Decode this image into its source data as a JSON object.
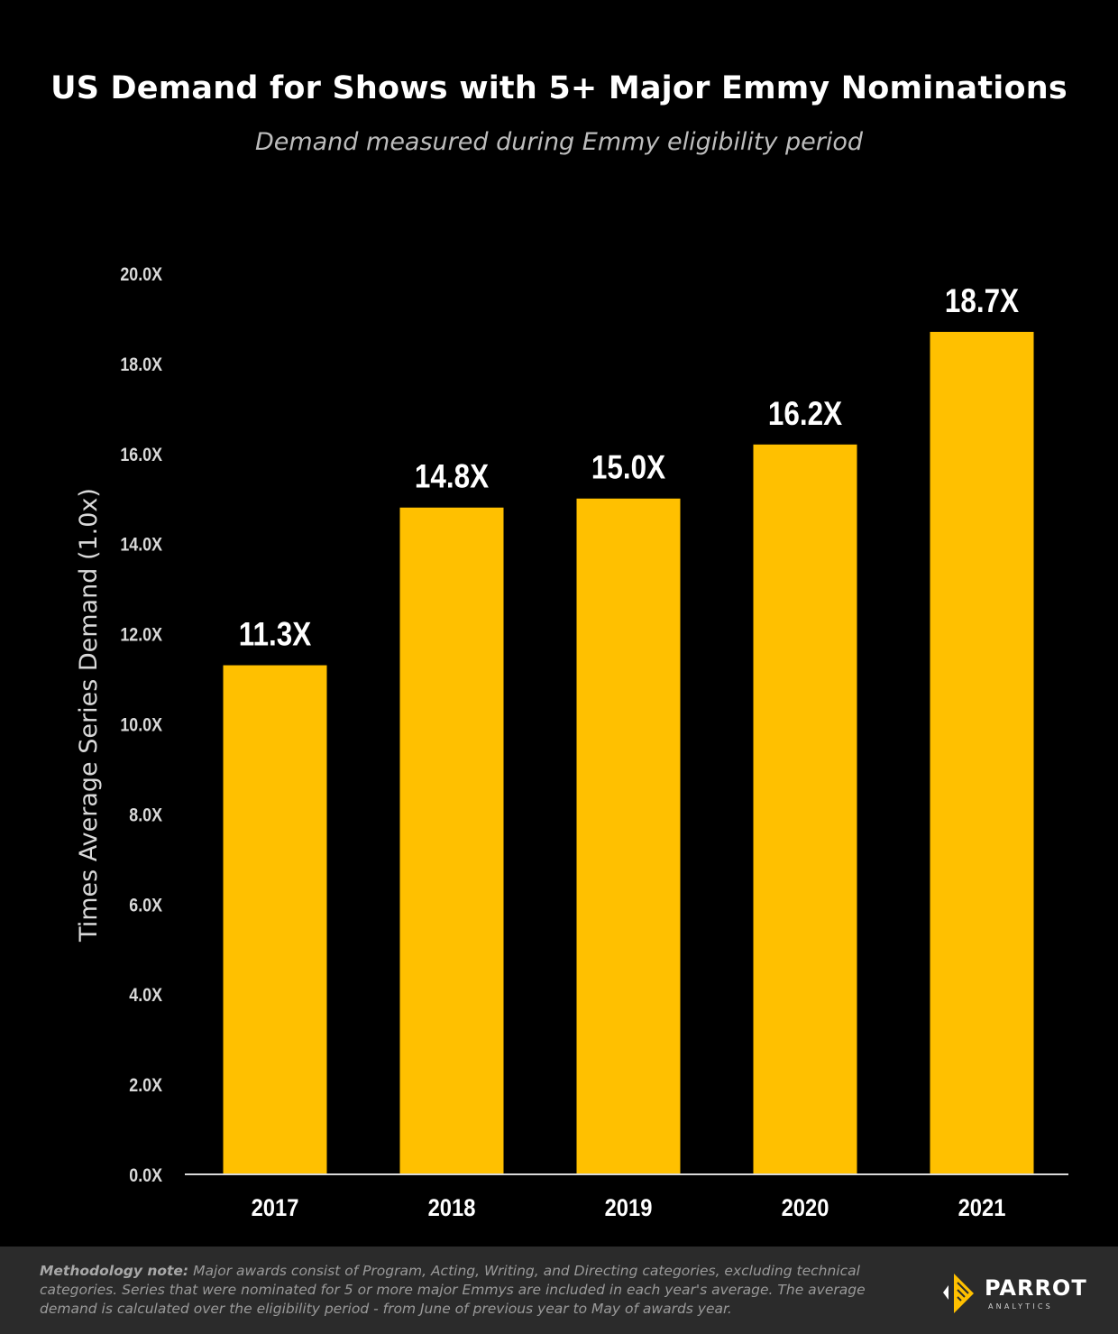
{
  "colors": {
    "background": "#000000",
    "bar": "#FFC000",
    "footer": "#2b2b2b"
  },
  "chart_data": {
    "type": "bar",
    "title": "US Demand for Shows with 5+ Major Emmy Nominations",
    "subtitle": "Demand measured during Emmy eligibility period",
    "categories": [
      "2017",
      "2018",
      "2019",
      "2020",
      "2021"
    ],
    "values": [
      11.3,
      14.8,
      15.0,
      16.2,
      18.7
    ],
    "data_labels": [
      "11.3X",
      "14.8X",
      "15.0X",
      "16.2X",
      "18.7X"
    ],
    "ylabel": "Times Average Series Demand (1.0x)",
    "xlabel": "",
    "ylim": [
      0,
      20
    ],
    "yticks": [
      0,
      2,
      4,
      6,
      8,
      10,
      12,
      14,
      16,
      18,
      20
    ],
    "ytick_labels": [
      "0.0X",
      "2.0X",
      "4.0X",
      "6.0X",
      "8.0X",
      "10.0X",
      "12.0X",
      "14.0X",
      "16.0X",
      "18.0X",
      "20.0X"
    ],
    "grid": false
  },
  "footer": {
    "note_label": "Methodology note:",
    "note_text": " Major awards consist of Program, Acting, Writing, and Directing categories, excluding technical categories.  Series that were nominated for 5 or more major Emmys are included in each year's average. The average demand is calculated over the eligibility period  - from June of previous year to May of awards year.",
    "logo_word": "PARROT",
    "logo_sub": "ANALYTICS"
  }
}
